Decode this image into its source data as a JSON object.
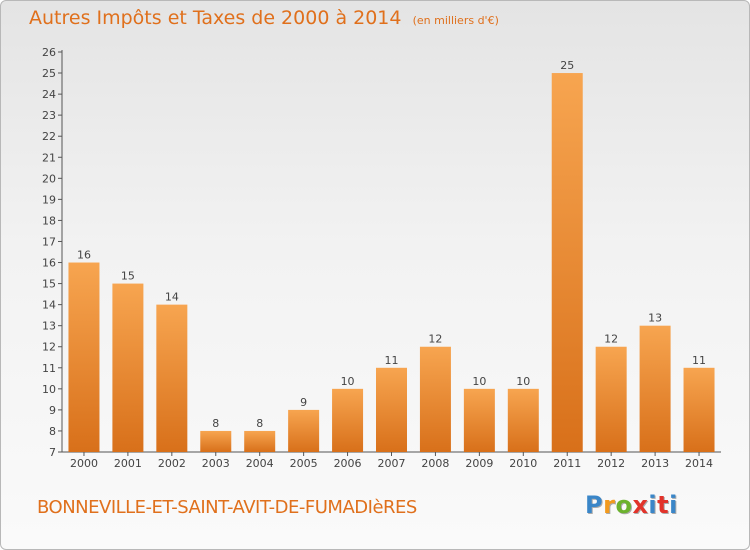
{
  "header": {
    "title": "Autres Impôts et Taxes de 2000 à 2014",
    "subtitle": "(en milliers d'€)"
  },
  "footer": {
    "commune": "BONNEVILLE-ET-SAINT-AVIT-DE-FUMADIèRES",
    "logo_text": "Proxiti",
    "logo_colors": [
      "#3a86c8",
      "#f29a1e",
      "#6cb22e",
      "#e2332a",
      "#3a86c8",
      "#e2332a",
      "#3a86c8"
    ]
  },
  "colors": {
    "accent": "#e0701c",
    "bar_light": "#f7a550",
    "bar_dark": "#d8701a"
  },
  "chart_data": {
    "type": "bar",
    "categories": [
      "2000",
      "2001",
      "2002",
      "2003",
      "2004",
      "2005",
      "2006",
      "2007",
      "2008",
      "2009",
      "2010",
      "2011",
      "2012",
      "2013",
      "2014"
    ],
    "values": [
      16,
      15,
      14,
      8,
      8,
      9,
      10,
      11,
      12,
      10,
      10,
      25,
      12,
      13,
      11
    ],
    "ylim": [
      7,
      26
    ],
    "yticks": [
      7,
      8,
      9,
      10,
      11,
      12,
      13,
      14,
      15,
      16,
      17,
      18,
      19,
      20,
      21,
      22,
      23,
      24,
      25,
      26
    ],
    "grid": false
  }
}
